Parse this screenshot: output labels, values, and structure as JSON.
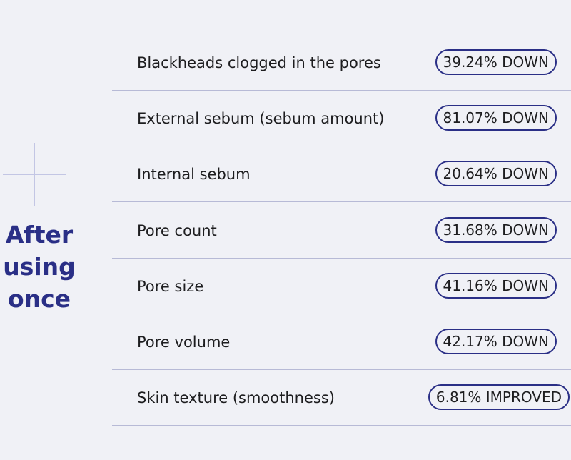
{
  "heading": {
    "line1": "After",
    "line2": "using",
    "line3": "once"
  },
  "metrics": [
    {
      "label": "Blackheads clogged in the pores",
      "change": "39.24% DOWN"
    },
    {
      "label": "External sebum (sebum amount)",
      "change": "81.07% DOWN"
    },
    {
      "label": "Internal sebum",
      "change": "20.64% DOWN"
    },
    {
      "label": "Pore count",
      "change": "31.68% DOWN"
    },
    {
      "label": "Pore size",
      "change": "41.16% DOWN"
    },
    {
      "label": "Pore volume",
      "change": "42.17% DOWN"
    },
    {
      "label": "Skin texture (smoothness)",
      "change": "6.81% IMPROVED"
    }
  ],
  "colors": {
    "background": "#f0f1f6",
    "accent": "#2a2f86",
    "divider": "#b7bad6"
  }
}
